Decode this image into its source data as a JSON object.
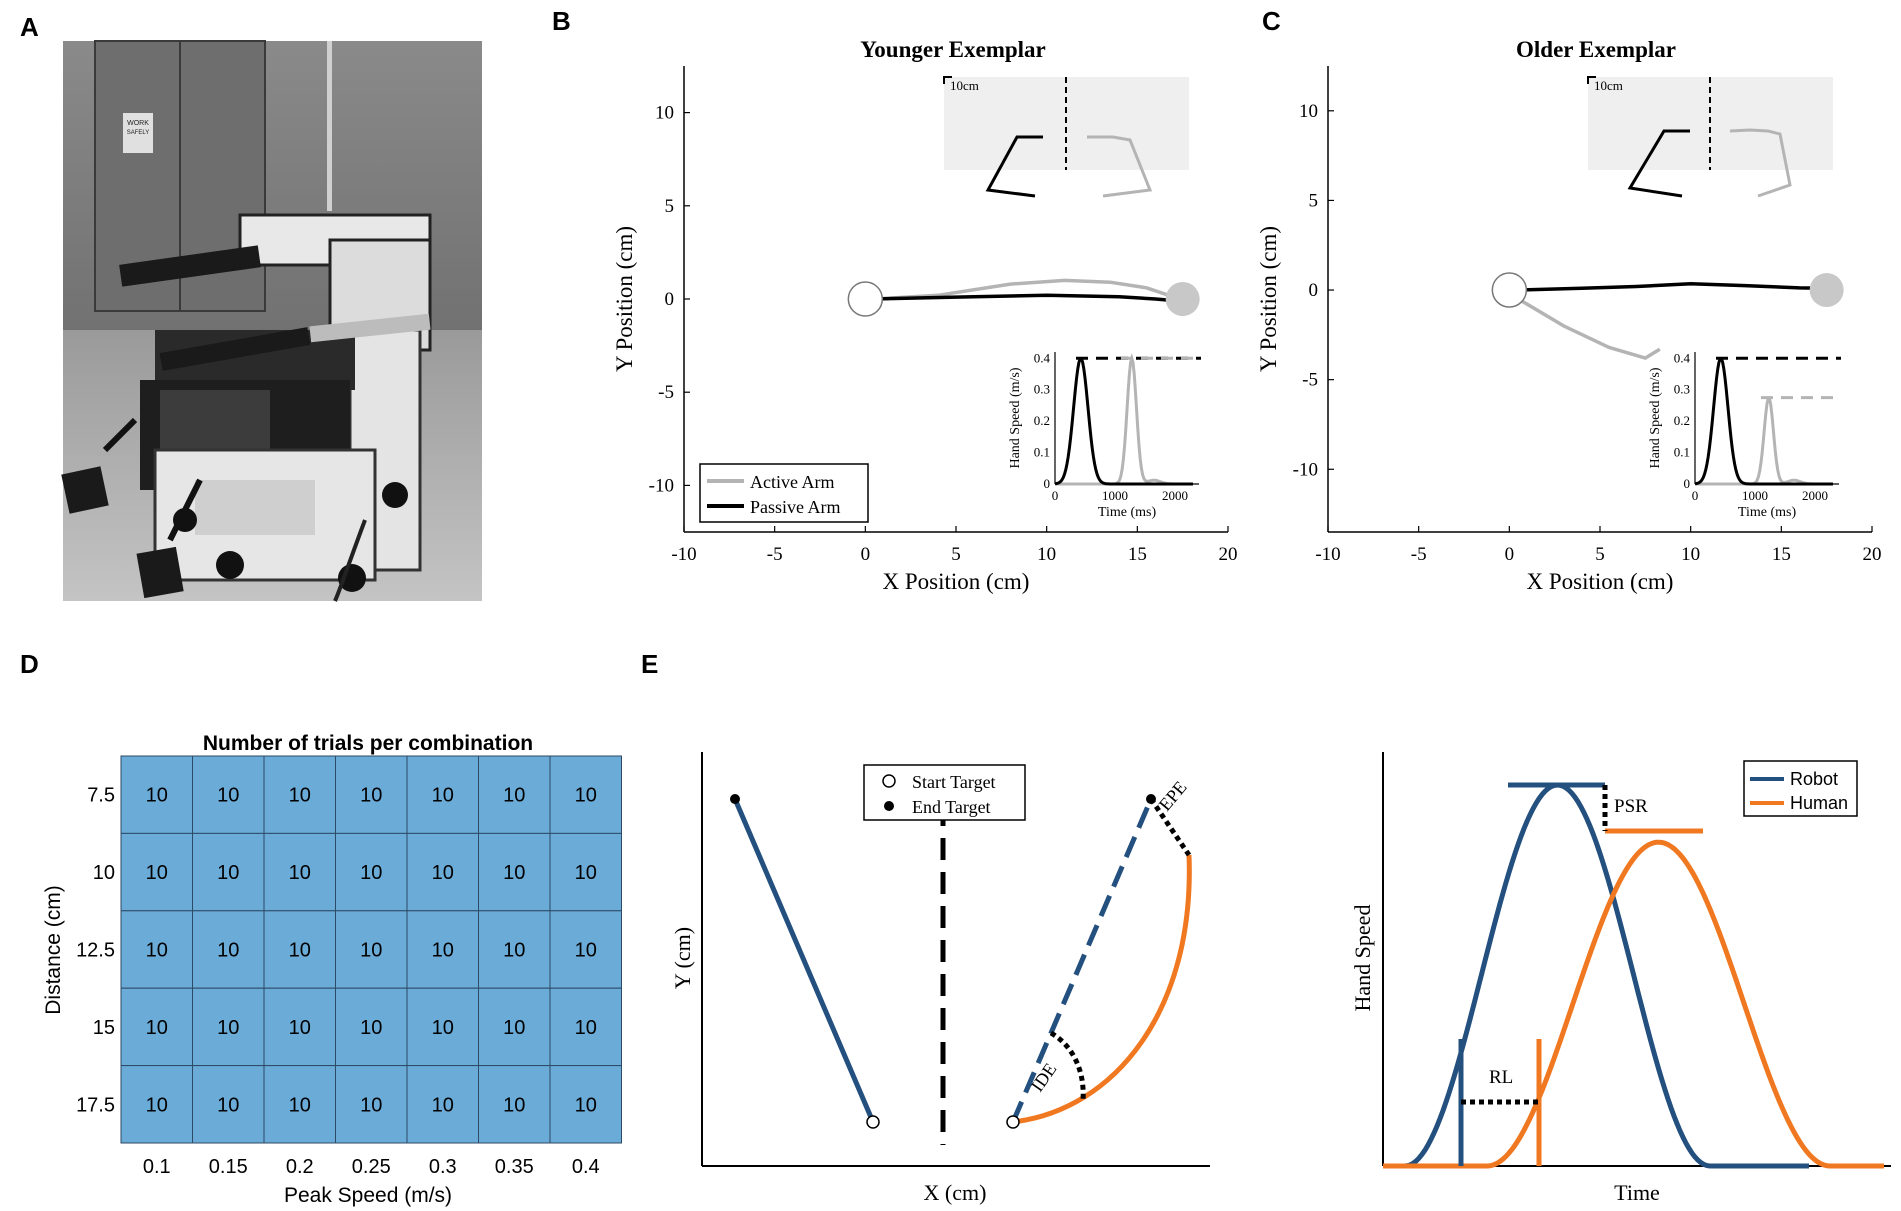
{
  "panel_labels": {
    "a": "A",
    "b": "B",
    "c": "C",
    "d": "D",
    "e": "E"
  },
  "photo": {
    "sign_line1": "WORK",
    "sign_line2": "SAFELY"
  },
  "chart_data": [
    {
      "id": "B",
      "type": "line",
      "title": "Younger Exemplar",
      "xlabel": "X Position (cm)",
      "ylabel": "Y Position (cm)",
      "xlim": [
        -10,
        20
      ],
      "ylim": [
        -12.5,
        12.5
      ],
      "xticks": [
        -10,
        -5,
        0,
        5,
        10,
        15,
        20
      ],
      "yticks": [
        -10,
        -5,
        0,
        5,
        10
      ],
      "start_target": {
        "x": 0,
        "y": 0,
        "color": "#ffffff"
      },
      "end_target": {
        "x": 17.5,
        "y": 0,
        "color": "#c8c8c8"
      },
      "series": [
        {
          "name": "Active Arm",
          "color": "#b4b4b4",
          "points": [
            [
              0.5,
              0
            ],
            [
              4,
              0.2
            ],
            [
              8,
              0.8
            ],
            [
              11,
              1.0
            ],
            [
              13.5,
              0.9
            ],
            [
              15.5,
              0.6
            ],
            [
              17.2,
              0.05
            ]
          ]
        },
        {
          "name": "Passive Arm",
          "color": "#000000",
          "points": [
            [
              0.5,
              0
            ],
            [
              5,
              0.1
            ],
            [
              10,
              0.2
            ],
            [
              14,
              0.12
            ],
            [
              16,
              0
            ],
            [
              17.2,
              -0.1
            ]
          ]
        }
      ],
      "legend": [
        "Active Arm",
        "Passive Arm"
      ],
      "inset_scale_label": "10cm",
      "inset": {
        "xlabel": "Time (ms)",
        "ylabel": "Hand Speed (m/s)",
        "xlim": [
          0,
          2400
        ],
        "ylim": [
          0,
          0.42
        ],
        "xticks": [
          0,
          1000,
          2000
        ],
        "yticks": [
          0,
          0.1,
          0.2,
          0.3,
          0.4
        ],
        "passive_peak": 0.4,
        "active_peak": 0.4,
        "passive_center_ms": 430,
        "active_center_ms": 1280
      }
    },
    {
      "id": "C",
      "type": "line",
      "title": "Older Exemplar",
      "xlabel": "X Position (cm)",
      "ylabel": "Y Position (cm)",
      "xlim": [
        -10,
        20
      ],
      "ylim": [
        -13.5,
        12.5
      ],
      "xticks": [
        -10,
        -5,
        0,
        5,
        10,
        15,
        20
      ],
      "yticks": [
        -10,
        -5,
        0,
        5,
        10
      ],
      "start_target": {
        "x": 0,
        "y": 0,
        "color": "#ffffff"
      },
      "end_target": {
        "x": 17.5,
        "y": 0,
        "color": "#c8c8c8"
      },
      "series": [
        {
          "name": "Active Arm",
          "color": "#b4b4b4",
          "points": [
            [
              0.5,
              -0.5
            ],
            [
              3,
              -2
            ],
            [
              5.5,
              -3.2
            ],
            [
              7.5,
              -3.8
            ],
            [
              8.3,
              -3.3
            ]
          ]
        },
        {
          "name": "Passive Arm",
          "color": "#000000",
          "points": [
            [
              0.5,
              0
            ],
            [
              4,
              0.1
            ],
            [
              7,
              0.2
            ],
            [
              10,
              0.35
            ],
            [
              13,
              0.25
            ],
            [
              16,
              0.12
            ],
            [
              17.3,
              0.1
            ]
          ]
        }
      ],
      "inset_scale_label": "10cm",
      "inset": {
        "xlabel": "Time (ms)",
        "ylabel": "Hand Speed (m/s)",
        "xlim": [
          0,
          2400
        ],
        "ylim": [
          0,
          0.42
        ],
        "xticks": [
          0,
          1000,
          2000
        ],
        "yticks": [
          0,
          0.1,
          0.2,
          0.3,
          0.4
        ],
        "passive_peak": 0.4,
        "active_peak": 0.275,
        "passive_center_ms": 430,
        "active_center_ms": 1230
      }
    },
    {
      "id": "D",
      "type": "heatmap",
      "title": "Number of trials per combination",
      "xlabel": "Peak Speed (m/s)",
      "ylabel": "Distance (cm)",
      "x_categories": [
        "0.1",
        "0.15",
        "0.2",
        "0.25",
        "0.3",
        "0.35",
        "0.4"
      ],
      "y_categories": [
        "7.5",
        "10",
        "12.5",
        "15",
        "17.5"
      ],
      "values": [
        [
          10,
          10,
          10,
          10,
          10,
          10,
          10
        ],
        [
          10,
          10,
          10,
          10,
          10,
          10,
          10
        ],
        [
          10,
          10,
          10,
          10,
          10,
          10,
          10
        ],
        [
          10,
          10,
          10,
          10,
          10,
          10,
          10
        ],
        [
          10,
          10,
          10,
          10,
          10,
          10,
          10
        ]
      ],
      "cell_color": "#6aabd8"
    },
    {
      "id": "E-left",
      "type": "line",
      "title": "",
      "xlabel": "X (cm)",
      "ylabel": "Y (cm)",
      "legend": [
        "Start Target",
        "End Target"
      ],
      "annotations": [
        "EPE",
        "IDE"
      ],
      "colors": {
        "robot": "#23507e",
        "human": "#f07820"
      }
    },
    {
      "id": "E-right",
      "type": "line",
      "title": "",
      "xlabel": "Time",
      "ylabel": "Hand Speed",
      "series": [
        {
          "name": "Robot",
          "color": "#23507e",
          "peak": 1.0
        },
        {
          "name": "Human",
          "color": "#f07820",
          "peak": 0.85
        }
      ],
      "legend": [
        "Robot",
        "Human"
      ],
      "annotations": [
        "PSR",
        "RL"
      ]
    }
  ]
}
